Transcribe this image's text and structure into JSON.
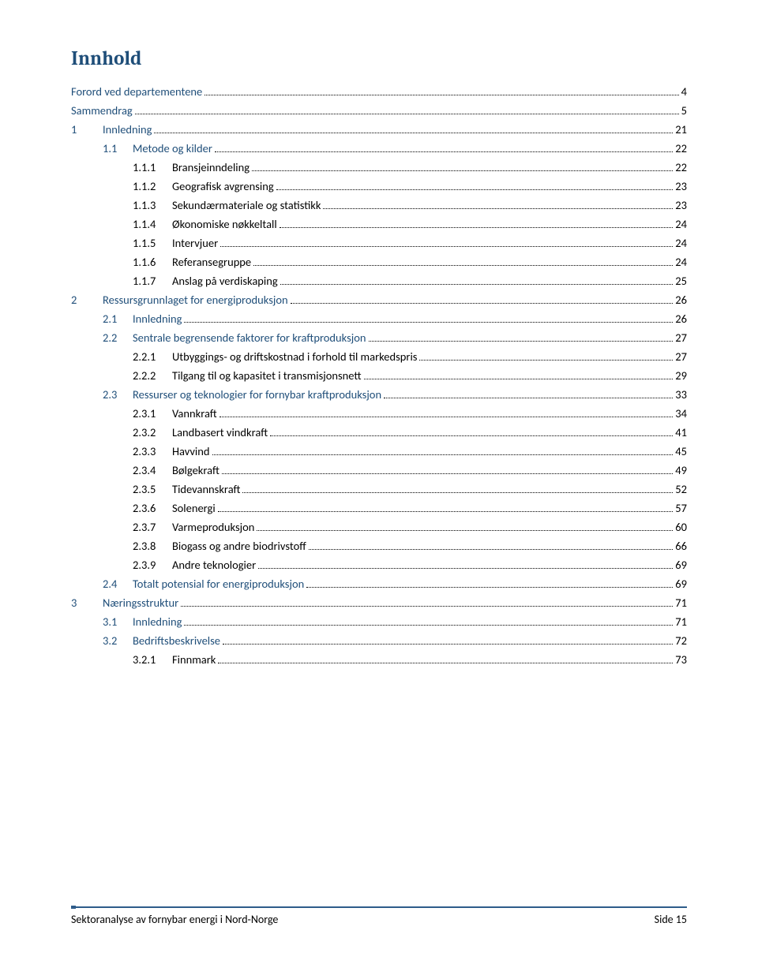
{
  "title": "Innhold",
  "text_color_heading": "#1f4e79",
  "text_color_body": "#000000",
  "accent_color": "#2e5c8a",
  "indents": {
    "l0": 0,
    "l1": 0,
    "l2": 40,
    "l3": 78
  },
  "num_widths": {
    "l0": 0,
    "l1": 40,
    "l2": 38,
    "l3": 50
  },
  "entries": [
    {
      "level": 0,
      "num": "",
      "label": "Forord ved departementene",
      "page": "4",
      "blue": true
    },
    {
      "level": 0,
      "num": "",
      "label": "Sammendrag",
      "page": "5",
      "blue": true
    },
    {
      "level": 1,
      "num": "1",
      "label": "Innledning",
      "page": "21",
      "blue": true
    },
    {
      "level": 2,
      "num": "1.1",
      "label": "Metode og kilder",
      "page": "22",
      "blue": true
    },
    {
      "level": 3,
      "num": "1.1.1",
      "label": "Bransjeinndeling",
      "page": "22",
      "blue": false
    },
    {
      "level": 3,
      "num": "1.1.2",
      "label": "Geografisk avgrensing",
      "page": "23",
      "blue": false
    },
    {
      "level": 3,
      "num": "1.1.3",
      "label": "Sekundærmateriale og statistikk",
      "page": "23",
      "blue": false
    },
    {
      "level": 3,
      "num": "1.1.4",
      "label": "Økonomiske nøkkeltall",
      "page": "24",
      "blue": false
    },
    {
      "level": 3,
      "num": "1.1.5",
      "label": "Intervjuer",
      "page": "24",
      "blue": false
    },
    {
      "level": 3,
      "num": "1.1.6",
      "label": "Referansegruppe",
      "page": "24",
      "blue": false
    },
    {
      "level": 3,
      "num": "1.1.7",
      "label": "Anslag på verdiskaping",
      "page": "25",
      "blue": false
    },
    {
      "level": 1,
      "num": "2",
      "label": "Ressursgrunnlaget for energiproduksjon",
      "page": "26",
      "blue": true
    },
    {
      "level": 2,
      "num": "2.1",
      "label": "Innledning",
      "page": "26",
      "blue": true
    },
    {
      "level": 2,
      "num": "2.2",
      "label": "Sentrale begrensende faktorer for kraftproduksjon",
      "page": "27",
      "blue": true
    },
    {
      "level": 3,
      "num": "2.2.1",
      "label": "Utbyggings- og driftskostnad i forhold til markedspris",
      "page": "27",
      "blue": false
    },
    {
      "level": 3,
      "num": "2.2.2",
      "label": "Tilgang til og kapasitet i transmisjonsnett",
      "page": "29",
      "blue": false
    },
    {
      "level": 2,
      "num": "2.3",
      "label": "Ressurser og teknologier for fornybar kraftproduksjon",
      "page": "33",
      "blue": true
    },
    {
      "level": 3,
      "num": "2.3.1",
      "label": "Vannkraft",
      "page": "34",
      "blue": false
    },
    {
      "level": 3,
      "num": "2.3.2",
      "label": "Landbasert vindkraft",
      "page": "41",
      "blue": false
    },
    {
      "level": 3,
      "num": "2.3.3",
      "label": "Havvind",
      "page": "45",
      "blue": false
    },
    {
      "level": 3,
      "num": "2.3.4",
      "label": "Bølgekraft",
      "page": "49",
      "blue": false
    },
    {
      "level": 3,
      "num": "2.3.5",
      "label": "Tidevannskraft",
      "page": "52",
      "blue": false
    },
    {
      "level": 3,
      "num": "2.3.6",
      "label": "Solenergi",
      "page": "57",
      "blue": false
    },
    {
      "level": 3,
      "num": "2.3.7",
      "label": "Varmeproduksjon",
      "page": "60",
      "blue": false
    },
    {
      "level": 3,
      "num": "2.3.8",
      "label": "Biogass og andre biodrivstoff",
      "page": "66",
      "blue": false
    },
    {
      "level": 3,
      "num": "2.3.9",
      "label": "Andre teknologier",
      "page": "69",
      "blue": false
    },
    {
      "level": 2,
      "num": "2.4",
      "label": "Totalt potensial for energiproduksjon",
      "page": "69",
      "blue": true
    },
    {
      "level": 1,
      "num": "3",
      "label": "Næringsstruktur",
      "page": "71",
      "blue": true
    },
    {
      "level": 2,
      "num": "3.1",
      "label": "Innledning",
      "page": "71",
      "blue": true
    },
    {
      "level": 2,
      "num": "3.2",
      "label": "Bedriftsbeskrivelse",
      "page": "72",
      "blue": true
    },
    {
      "level": 3,
      "num": "3.2.1",
      "label": "Finnmark",
      "page": "73",
      "blue": false
    }
  ],
  "footer": {
    "left": "Sektoranalyse av fornybar energi i Nord-Norge",
    "right": "Side 15"
  }
}
